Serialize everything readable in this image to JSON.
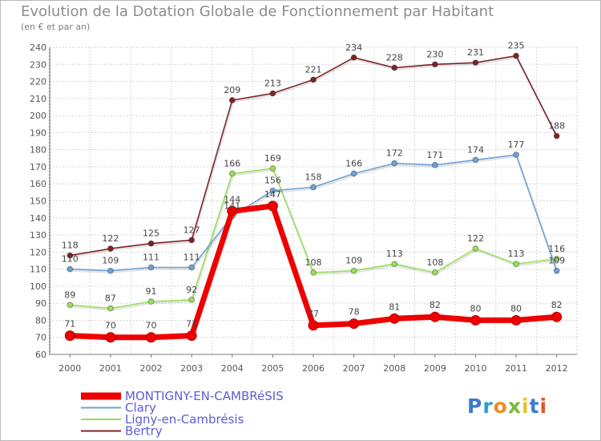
{
  "header": {
    "title": "Evolution de la Dotation Globale de Fonctionnement par Habitant",
    "subtitle": "(en € et par an)"
  },
  "logo": {
    "letters": [
      "P",
      "r",
      "o",
      "x",
      "i",
      "t",
      "i"
    ],
    "colors": [
      "#3a7dc9",
      "#2a9cd6",
      "#f08a24",
      "#7ab83a",
      "#e8c22a",
      "#3a7dc9",
      "#e0552a"
    ]
  },
  "chart_data": {
    "type": "line",
    "title": "Evolution de la Dotation Globale de Fonctionnement par Habitant",
    "subtitle": "(en € et par an)",
    "x": [
      "2000",
      "2001",
      "2002",
      "2003",
      "2004",
      "2005",
      "2006",
      "2007",
      "2008",
      "2009",
      "2010",
      "2011",
      "2012"
    ],
    "ylim": [
      60,
      240
    ],
    "yticks": [
      60,
      70,
      80,
      90,
      100,
      110,
      120,
      130,
      140,
      150,
      160,
      170,
      180,
      190,
      200,
      210,
      220,
      230,
      240
    ],
    "grid": true,
    "legend_position": "bottom-left",
    "series": [
      {
        "name": "Bertry",
        "color": "#7d2528",
        "values": [
          118,
          122,
          125,
          127,
          209,
          213,
          221,
          234,
          228,
          230,
          231,
          235,
          188
        ]
      },
      {
        "name": "Ligny-en-Cambrésis",
        "color": "#99e05a",
        "values": [
          89,
          87,
          91,
          92,
          166,
          169,
          108,
          109,
          113,
          108,
          122,
          113,
          116
        ]
      },
      {
        "name": "Clary",
        "color": "#6ea2d6",
        "values": [
          110,
          109,
          111,
          111,
          141,
          156,
          158,
          166,
          172,
          171,
          174,
          177,
          109
        ]
      },
      {
        "name": "MONTIGNY-EN-CAMBRéSIS",
        "color": "#ee0000",
        "values": [
          71,
          70,
          70,
          71,
          144,
          147,
          77,
          78,
          81,
          82,
          80,
          80,
          82
        ]
      }
    ],
    "legend": [
      {
        "name": "MONTIGNY-EN-CAMBRéSIS",
        "color": "#ee0000"
      },
      {
        "name": "Clary",
        "color": "#6ea2d6"
      },
      {
        "name": "Ligny-en-Cambrésis",
        "color": "#99e05a"
      },
      {
        "name": "Bertry",
        "color": "#7d2528"
      }
    ]
  }
}
